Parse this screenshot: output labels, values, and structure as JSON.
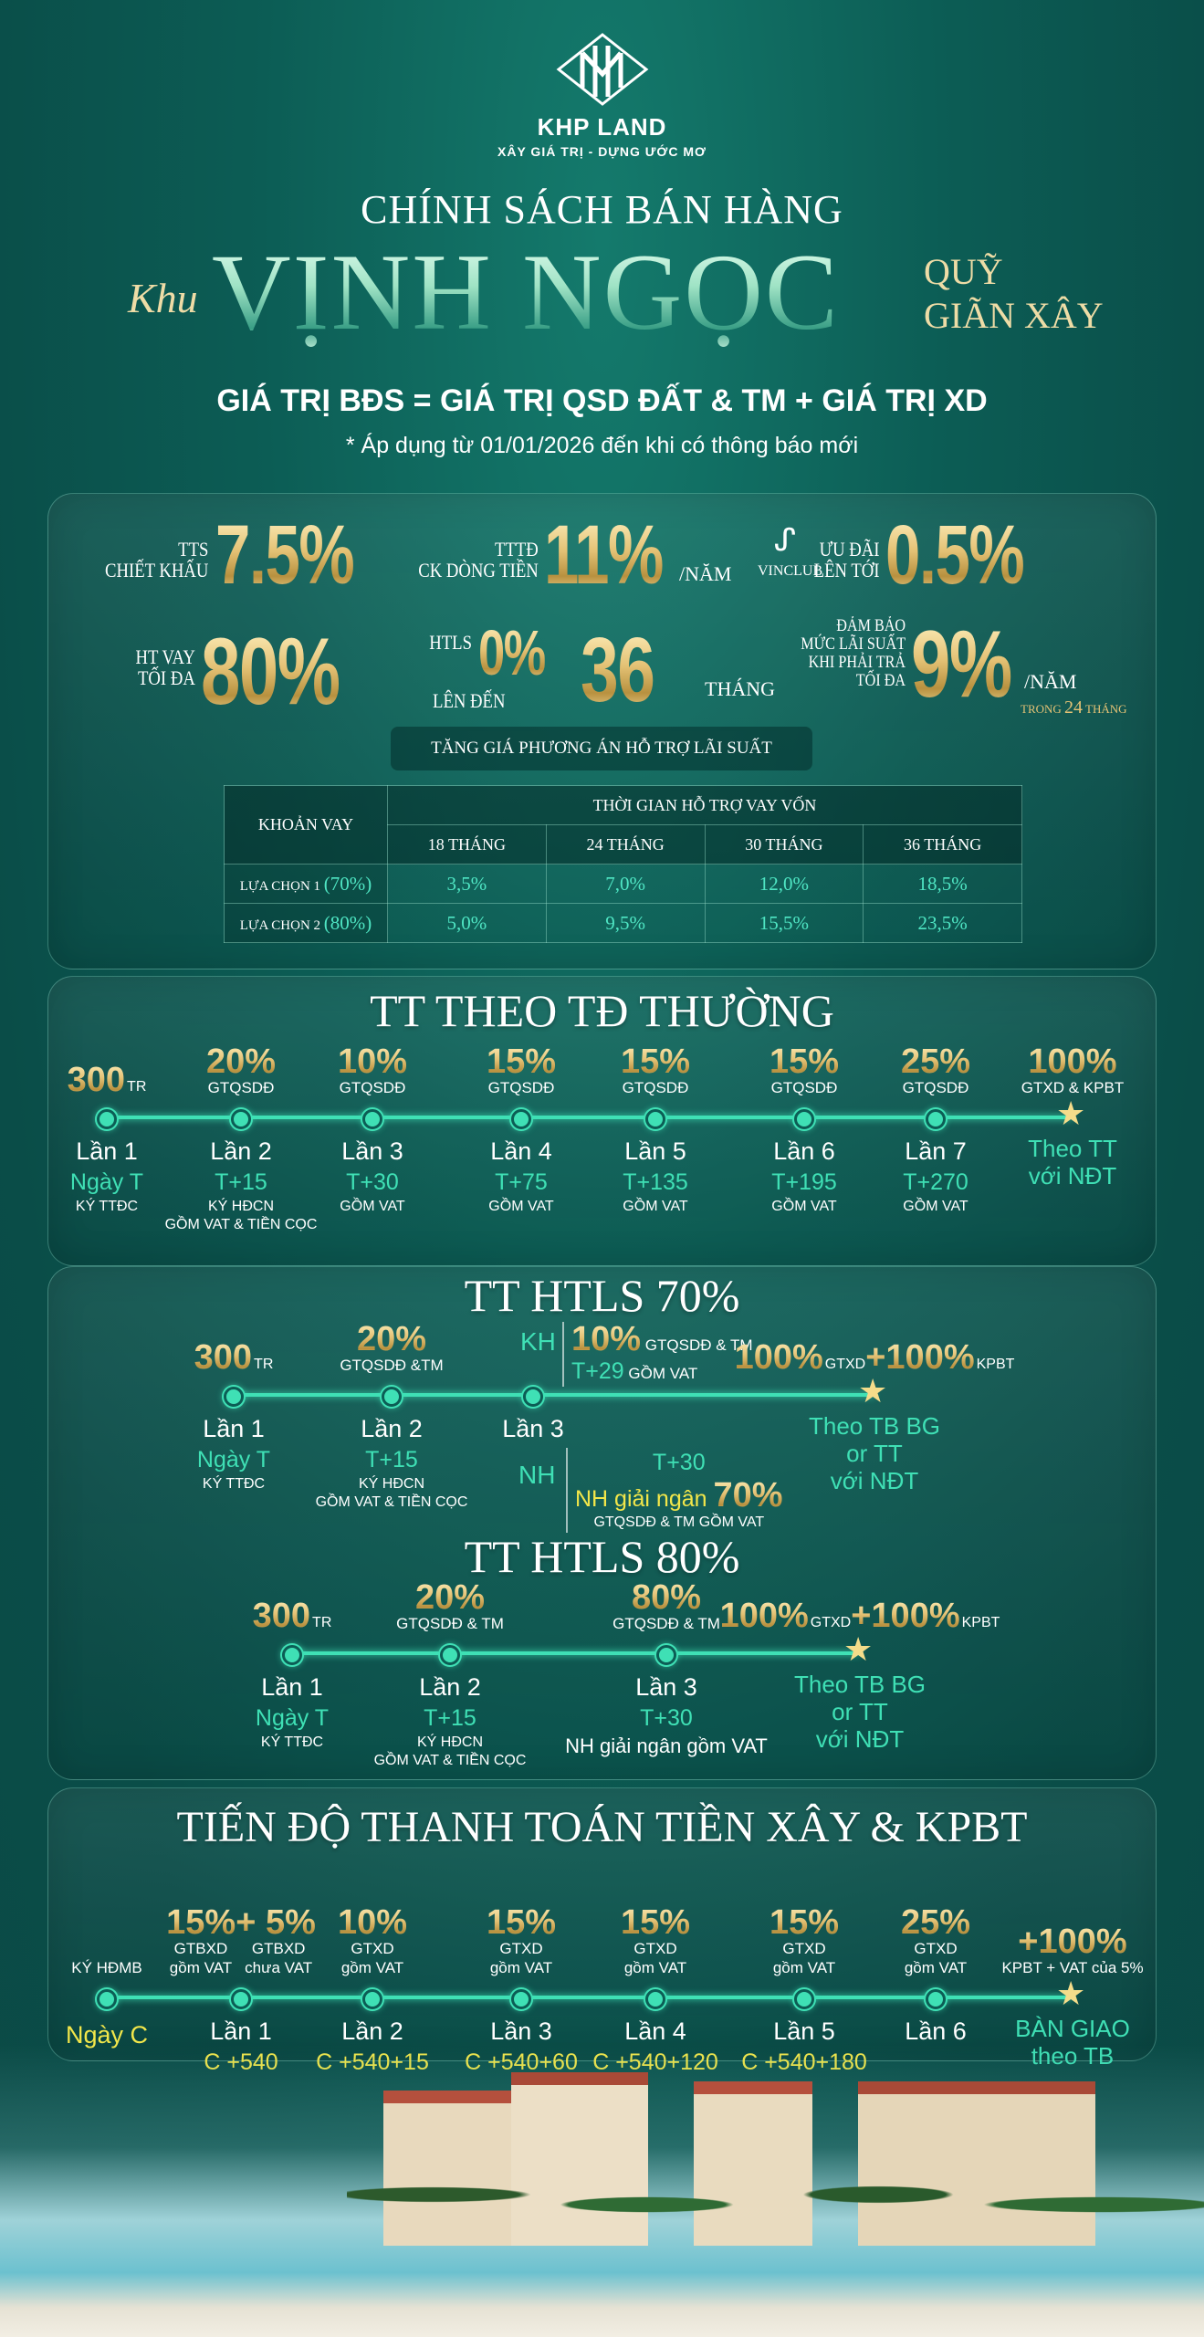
{
  "brand": {
    "name": "KHP LAND",
    "tagline": "XÂY GIÁ TRỊ - DỰNG ƯỚC MƠ"
  },
  "header": {
    "title": "CHÍNH SÁCH BÁN HÀNG",
    "script_word": "Khu",
    "project": "VỊNH NGỌC",
    "side_line1": "QUỸ",
    "side_line2": "GIÃN XÂY",
    "formula": "GIÁ TRỊ BĐS = GIÁ TRỊ QSD ĐẤT & TM + GIÁ TRỊ XD",
    "note": "* Áp dụng từ 01/01/2026 đến khi có thông báo mới"
  },
  "stats": {
    "tts": {
      "l1": "TTS",
      "l2": "CHIẾT KHẤU",
      "value": "7.5%"
    },
    "tttd": {
      "l1": "TTTĐ",
      "l2": "CK DÒNG TIỀN",
      "value": "11%",
      "suffix": "/NĂM"
    },
    "vinclub": {
      "logo": "VINCLUB",
      "l1": "ƯU ĐÃI",
      "l2": "LÊN TỚI",
      "value": "0.5%"
    },
    "vay": {
      "l1": "HT VAY",
      "l2": "TỐI ĐA",
      "value": "80%"
    },
    "htls": {
      "l1": "HTLS",
      "l2": "LÊN ĐẾN",
      "value": "0%",
      "months": "36",
      "suffix": "THÁNG"
    },
    "guarantee": {
      "l1": "ĐẢM BẢO",
      "l2": "MỨC LÃI SUẤT",
      "l3": "KHI PHẢI TRẢ",
      "l4": "TỐI ĐA",
      "value": "9%",
      "suffix": "/NĂM",
      "sub_pre": "TRONG",
      "sub_num": "24",
      "sub_post": "THÁNG"
    }
  },
  "interest_table": {
    "banner": "TĂNG GIÁ PHƯƠNG ÁN HỖ TRỢ LÃI SUẤT",
    "col0": "KHOẢN VAY",
    "group": "THỜI GIAN HỖ TRỢ VAY VỐN",
    "headers": [
      "18 THÁNG",
      "24 THÁNG",
      "30 THÁNG",
      "36 THÁNG"
    ],
    "rows": [
      {
        "label": "LỰA CHỌN 1",
        "pct": "(70%)",
        "values": [
          "3,5%",
          "7,0%",
          "12,0%",
          "18,5%"
        ]
      },
      {
        "label": "LỰA CHỌN 2",
        "pct": "(80%)",
        "values": [
          "5,0%",
          "9,5%",
          "15,5%",
          "23,5%"
        ]
      }
    ]
  },
  "sections": {
    "normal": "TT THEO TĐ THƯỜNG",
    "htls70": "TT HTLS 70%",
    "htls80": "TT HTLS 80%",
    "construction": "TIẾN ĐỘ THANH TOÁN TIỀN XÂY & KPBT"
  },
  "colors": {
    "gold": "#e4c275",
    "teal": "#3fe0b5",
    "yellow": "#f2e64a",
    "background": "#0c5d55"
  },
  "timelines": {
    "normal": [
      {
        "values": [
          {
            "v": "300",
            "u": "TR"
          }
        ],
        "label": "Lần 1",
        "date": "Ngày T",
        "note": [
          "KÝ TTĐC"
        ]
      },
      {
        "values": [
          {
            "v": "20%"
          }
        ],
        "desc": [
          "GTQSDĐ"
        ],
        "label": "Lần 2",
        "date": "T+15",
        "note": [
          "KÝ HĐCN",
          "GỒM VAT & TIỀN CỌC"
        ]
      },
      {
        "values": [
          {
            "v": "10%"
          }
        ],
        "desc": [
          "GTQSDĐ"
        ],
        "label": "Lần 3",
        "date": "T+30",
        "note": [
          "GỒM VAT"
        ]
      },
      {
        "values": [
          {
            "v": "15%"
          }
        ],
        "desc": [
          "GTQSDĐ"
        ],
        "label": "Lần 4",
        "date": "T+75",
        "note": [
          "GỒM VAT"
        ]
      },
      {
        "values": [
          {
            "v": "15%"
          }
        ],
        "desc": [
          "GTQSDĐ"
        ],
        "label": "Lần 5",
        "date": "T+135",
        "note": [
          "GỒM VAT"
        ]
      },
      {
        "values": [
          {
            "v": "15%"
          }
        ],
        "desc": [
          "GTQSDĐ"
        ],
        "label": "Lần 6",
        "date": "T+195",
        "note": [
          "GỒM VAT"
        ]
      },
      {
        "values": [
          {
            "v": "25%"
          }
        ],
        "desc": [
          "GTQSDĐ"
        ],
        "label": "Lần 7",
        "date": "T+270",
        "note": [
          "GỒM VAT"
        ]
      },
      {
        "final": true,
        "values": [
          {
            "v": "100%"
          }
        ],
        "desc": [
          "GTXD & KPBT"
        ],
        "date_lines": [
          "Theo TT",
          "với NĐT"
        ]
      }
    ],
    "htls70": [
      {
        "values": [
          {
            "v": "300",
            "u": "TR"
          }
        ],
        "label": "Lần 1",
        "date": "Ngày T",
        "note": [
          "KÝ TTĐC"
        ]
      },
      {
        "values": [
          {
            "v": "20%"
          }
        ],
        "desc": [
          "GTQSDĐ &TM"
        ],
        "label": "Lần 2",
        "date": "T+15",
        "note": [
          "KÝ HĐCN",
          "GỒM VAT & TIỀN CỌC"
        ]
      },
      {
        "label": "Lần 3",
        "kh": {
          "tag": "KH",
          "value": "10%",
          "desc": "GTQSDĐ & TM",
          "date": "T+29",
          "note": "GỒM VAT"
        },
        "nh": {
          "tag": "NH",
          "date": "T+30",
          "text": "NH giải ngân",
          "value": "70%",
          "note": "GTQSDĐ & TM  GỒM VAT"
        }
      },
      {
        "final": true,
        "values": [
          {
            "v": "100%",
            "u": "GTXD"
          },
          {
            "v": "+100%",
            "u": "KPBT"
          }
        ],
        "date_lines": [
          "Theo TB BG",
          "or TT",
          "với NĐT"
        ]
      }
    ],
    "htls80": [
      {
        "values": [
          {
            "v": "300",
            "u": "TR"
          }
        ],
        "label": "Lần 1",
        "date": "Ngày T",
        "note": [
          "KÝ TTĐC"
        ]
      },
      {
        "values": [
          {
            "v": "20%"
          }
        ],
        "desc": [
          "GTQSDĐ & TM"
        ],
        "label": "Lần 2",
        "date": "T+15",
        "note": [
          "KÝ HĐCN",
          "GỒM VAT & TIỀN CỌC"
        ]
      },
      {
        "values": [
          {
            "v": "80%"
          }
        ],
        "desc": [
          "GTQSDĐ & TM"
        ],
        "label": "Lần 3",
        "date": "T+30",
        "strong_note": "NH giải ngân gồm VAT"
      },
      {
        "final": true,
        "values": [
          {
            "v": "100%",
            "u": "GTXD"
          },
          {
            "v": "+100%",
            "u": "KPBT"
          }
        ],
        "date_lines": [
          "Theo TB BG",
          "or TT",
          "với NĐT"
        ]
      }
    ],
    "construction": [
      {
        "desc": [
          "KÝ HĐMB"
        ],
        "date": "Ngày C"
      },
      {
        "values": [
          {
            "v": "15%"
          },
          {
            "v": "+ 5%"
          }
        ],
        "desc_cols": [
          [
            "GTBXD",
            "gồm VAT"
          ],
          [
            "GTBXD",
            "chưa VAT"
          ]
        ],
        "label": "Lần 1",
        "date": "C +540"
      },
      {
        "values": [
          {
            "v": "10%"
          }
        ],
        "desc": [
          "GTXD",
          "gồm VAT"
        ],
        "label": "Lần 2",
        "date": "C +540+15"
      },
      {
        "values": [
          {
            "v": "15%"
          }
        ],
        "desc": [
          "GTXD",
          "gồm VAT"
        ],
        "label": "Lần 3",
        "date": "C +540+60"
      },
      {
        "values": [
          {
            "v": "15%"
          }
        ],
        "desc": [
          "GTXD",
          "gồm VAT"
        ],
        "label": "Lần 4",
        "date": "C +540+120"
      },
      {
        "values": [
          {
            "v": "15%"
          }
        ],
        "desc": [
          "GTXD",
          "gồm VAT"
        ],
        "label": "Lần 5",
        "date": "C +540+180"
      },
      {
        "values": [
          {
            "v": "25%"
          }
        ],
        "desc": [
          "GTXD",
          "gồm VAT"
        ],
        "label": "Lần 6"
      },
      {
        "final": true,
        "values": [
          {
            "v": "+100%"
          }
        ],
        "desc": [
          "KPBT + VAT của 5%"
        ],
        "date_lines": [
          "BÀN GIAO",
          "theo TB"
        ]
      }
    ]
  }
}
